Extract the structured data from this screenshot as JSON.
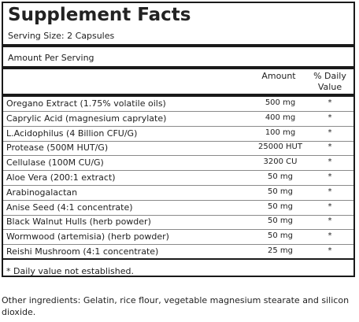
{
  "panel": {
    "title": "Supplement Facts",
    "serving_size": "Serving Size: 2 Capsules",
    "amount_per_serving": "Amount Per Serving",
    "headers": {
      "amount": "Amount",
      "daily_value_line1": "% Daily",
      "daily_value_line2": "Value"
    },
    "rows": [
      {
        "name": "Oregano Extract (1.75% volatile oils)",
        "amount": "500 mg",
        "dv": "*"
      },
      {
        "name": "Caprylic Acid (magnesium caprylate)",
        "amount": "400 mg",
        "dv": "*"
      },
      {
        "name": "L.Acidophilus (4 Billion CFU/G)",
        "amount": "100 mg",
        "dv": "*"
      },
      {
        "name": "Protease (500M HUT/G)",
        "amount": "25000 HUT",
        "dv": "*"
      },
      {
        "name": "Cellulase (100M CU/G)",
        "amount": "3200 CU",
        "dv": "*"
      },
      {
        "name": "Aloe Vera (200:1 extract)",
        "amount": "50 mg",
        "dv": "*"
      },
      {
        "name": "Arabinogalactan",
        "amount": "50 mg",
        "dv": "*"
      },
      {
        "name": "Anise Seed (4:1 concentrate)",
        "amount": "50 mg",
        "dv": "*"
      },
      {
        "name": "Black Walnut Hulls (herb powder)",
        "amount": "50 mg",
        "dv": "*"
      },
      {
        "name": "Wormwood (artemisia) (herb powder)",
        "amount": "50 mg",
        "dv": "*"
      },
      {
        "name": "Reishi Mushroom (4:1 concentrate)",
        "amount": "25 mg",
        "dv": "*"
      }
    ],
    "footnote": "* Daily value not established."
  },
  "other_ingredients": "Other ingredients: Gelatin, rice flour, vegetable magnesium stearate and silicon dioxide."
}
